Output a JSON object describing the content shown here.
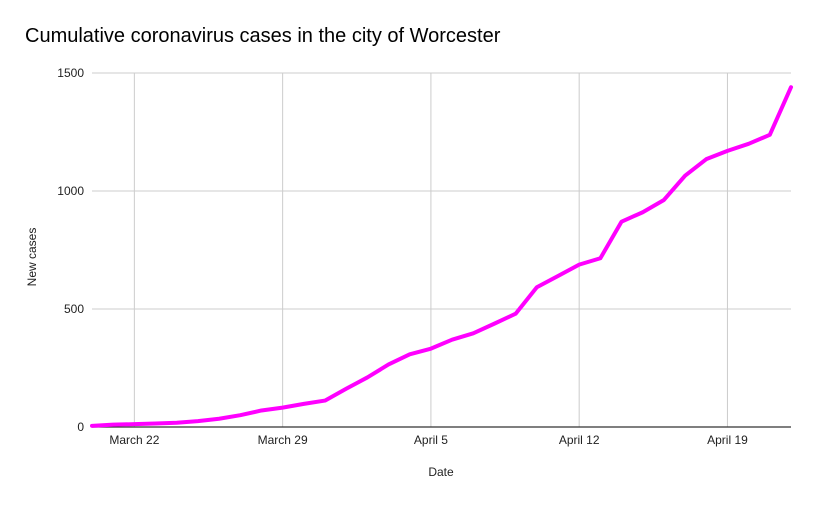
{
  "chart_data": {
    "type": "line",
    "title": "Cumulative coronavirus cases in the city of Worcester",
    "xlabel": "Date",
    "ylabel": "New cases",
    "x": [
      "2020-03-20",
      "2020-03-21",
      "2020-03-22",
      "2020-03-23",
      "2020-03-24",
      "2020-03-25",
      "2020-03-26",
      "2020-03-27",
      "2020-03-28",
      "2020-03-29",
      "2020-03-30",
      "2020-03-31",
      "2020-04-01",
      "2020-04-02",
      "2020-04-03",
      "2020-04-04",
      "2020-04-05",
      "2020-04-06",
      "2020-04-07",
      "2020-04-08",
      "2020-04-09",
      "2020-04-10",
      "2020-04-11",
      "2020-04-12",
      "2020-04-13",
      "2020-04-14",
      "2020-04-15",
      "2020-04-16",
      "2020-04-17",
      "2020-04-18",
      "2020-04-19",
      "2020-04-20",
      "2020-04-21",
      "2020-04-22"
    ],
    "series": [
      {
        "values": [
          5,
          10,
          12,
          15,
          18,
          25,
          35,
          50,
          70,
          82,
          98,
          112,
          162,
          210,
          265,
          308,
          332,
          370,
          397,
          438,
          480,
          592,
          640,
          688,
          715,
          870,
          910,
          962,
          1065,
          1135,
          1170,
          1200,
          1238,
          1440
        ]
      }
    ],
    "x_ticks": [
      {
        "date": "2020-03-22",
        "label": "March 22"
      },
      {
        "date": "2020-03-29",
        "label": "March 29"
      },
      {
        "date": "2020-04-05",
        "label": "April 5"
      },
      {
        "date": "2020-04-12",
        "label": "April 12"
      },
      {
        "date": "2020-04-19",
        "label": "April 19"
      }
    ],
    "y_ticks": [
      0,
      500,
      1000,
      1500
    ],
    "ylim": [
      0,
      1500
    ],
    "xlim": [
      "2020-03-20",
      "2020-04-22"
    ],
    "grid": true,
    "colors": {
      "line": "#ff00ff",
      "grid": "#cccccc",
      "axis": "#333333"
    }
  }
}
